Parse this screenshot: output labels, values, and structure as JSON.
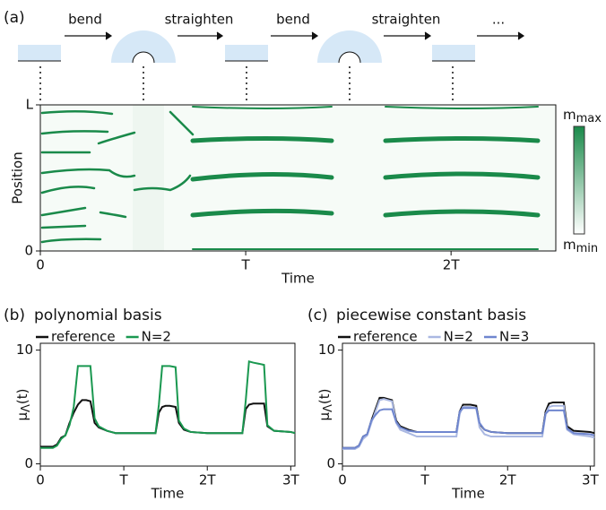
{
  "panel_labels": [
    "(a)",
    "(b)",
    "(c)"
  ],
  "schematic_steps": [
    "bend",
    "straighten",
    "bend",
    "straighten",
    "..."
  ],
  "chart_data": [
    {
      "type": "heatmap",
      "xlabel": "Time",
      "ylabel": "Position",
      "xlim": [
        0,
        2.51
      ],
      "xticks": [
        0,
        {
          "value": 1,
          "label": "T"
        },
        {
          "value": 2,
          "label": "2T"
        }
      ],
      "ylim": [
        0,
        1
      ],
      "yticks": [
        0,
        {
          "value": 1,
          "label": "L"
        }
      ],
      "colorbar": {
        "max": [
          "m",
          "max"
        ],
        "min": [
          "m",
          "min"
        ],
        "color": "#1a8a4a"
      }
    },
    {
      "type": "line",
      "title": "polynomial basis",
      "xlabel": "Time",
      "ylabel": [
        "μ",
        "Λ",
        "(t)"
      ],
      "xlim": [
        0,
        3.05
      ],
      "xticks": [
        0,
        {
          "value": 1,
          "label": "T"
        },
        {
          "value": 2,
          "label": "2T"
        },
        {
          "value": 3,
          "label": "3T"
        }
      ],
      "ylim": [
        -0.2,
        10.6
      ],
      "yticks": [
        0,
        10
      ],
      "x": [
        0,
        0.15,
        0.2,
        0.25,
        0.3,
        0.35,
        0.4,
        0.45,
        0.5,
        0.55,
        0.6,
        0.65,
        0.7,
        0.8,
        0.9,
        1.0,
        1.2,
        1.38,
        1.42,
        1.46,
        1.5,
        1.55,
        1.62,
        1.66,
        1.72,
        1.8,
        2.0,
        2.3,
        2.42,
        2.46,
        2.5,
        2.55,
        2.62,
        2.68,
        2.72,
        2.8,
        3.0,
        3.05
      ],
      "series": [
        {
          "name": "reference",
          "color": "#111111",
          "values": [
            1.5,
            1.5,
            1.7,
            2.3,
            2.5,
            3.6,
            4.5,
            5.2,
            5.6,
            5.6,
            5.5,
            3.6,
            3.2,
            2.9,
            2.7,
            2.7,
            2.7,
            2.7,
            4.5,
            5.0,
            5.1,
            5.1,
            5.0,
            3.6,
            3.0,
            2.8,
            2.7,
            2.7,
            2.7,
            4.8,
            5.2,
            5.3,
            5.3,
            5.3,
            3.3,
            2.9,
            2.8,
            2.7
          ]
        },
        {
          "name": "N=2",
          "color": "#1a9850",
          "values": [
            1.4,
            1.4,
            1.6,
            2.2,
            2.5,
            3.4,
            5.0,
            8.6,
            8.6,
            8.6,
            8.6,
            4.0,
            3.3,
            2.9,
            2.7,
            2.7,
            2.7,
            2.7,
            5.2,
            8.6,
            8.6,
            8.6,
            8.5,
            3.8,
            3.1,
            2.8,
            2.7,
            2.7,
            2.7,
            5.5,
            9.0,
            8.9,
            8.8,
            8.7,
            3.4,
            2.9,
            2.8,
            2.7
          ]
        }
      ]
    },
    {
      "type": "line",
      "title": "piecewise constant basis",
      "xlabel": "Time",
      "ylabel": [
        "μ",
        "Λ",
        "(t)"
      ],
      "xlim": [
        0,
        3.05
      ],
      "xticks": [
        0,
        {
          "value": 1,
          "label": "T"
        },
        {
          "value": 2,
          "label": "2T"
        },
        {
          "value": 3,
          "label": "3T"
        }
      ],
      "ylim": [
        -0.2,
        10.6
      ],
      "yticks": [
        0,
        10
      ],
      "x": [
        0,
        0.15,
        0.2,
        0.25,
        0.3,
        0.35,
        0.4,
        0.45,
        0.5,
        0.55,
        0.6,
        0.65,
        0.7,
        0.8,
        0.9,
        1.0,
        1.2,
        1.38,
        1.42,
        1.46,
        1.5,
        1.55,
        1.62,
        1.66,
        1.72,
        1.8,
        2.0,
        2.3,
        2.42,
        2.46,
        2.5,
        2.55,
        2.62,
        2.68,
        2.72,
        2.8,
        3.0,
        3.05
      ],
      "series": [
        {
          "name": "reference",
          "color": "#111111",
          "values": [
            1.4,
            1.4,
            1.6,
            2.4,
            2.6,
            3.8,
            4.8,
            5.8,
            5.8,
            5.7,
            5.6,
            3.8,
            3.3,
            3.0,
            2.8,
            2.8,
            2.8,
            2.8,
            4.6,
            5.2,
            5.2,
            5.2,
            5.1,
            3.5,
            3.0,
            2.8,
            2.7,
            2.7,
            2.7,
            4.6,
            5.3,
            5.4,
            5.4,
            5.4,
            3.3,
            2.9,
            2.8,
            2.7
          ]
        },
        {
          "name": "N=2",
          "color": "#aab8e2",
          "values": [
            1.3,
            1.3,
            1.5,
            2.2,
            2.5,
            3.6,
            4.6,
            5.6,
            5.7,
            5.6,
            5.5,
            3.6,
            3.0,
            2.7,
            2.4,
            2.4,
            2.4,
            2.4,
            4.4,
            5.0,
            5.0,
            5.0,
            4.9,
            3.2,
            2.6,
            2.4,
            2.4,
            2.4,
            2.4,
            4.4,
            5.0,
            5.1,
            5.1,
            5.1,
            3.0,
            2.6,
            2.4,
            2.3
          ]
        },
        {
          "name": "N=3",
          "color": "#6f86cf",
          "values": [
            1.4,
            1.4,
            1.6,
            2.4,
            2.6,
            3.8,
            4.3,
            4.7,
            4.8,
            4.8,
            4.8,
            3.7,
            3.2,
            2.9,
            2.8,
            2.8,
            2.8,
            2.8,
            4.6,
            4.9,
            4.9,
            4.9,
            4.9,
            3.6,
            3.0,
            2.8,
            2.7,
            2.7,
            2.7,
            4.4,
            4.7,
            4.7,
            4.7,
            4.7,
            3.1,
            2.7,
            2.6,
            2.5
          ]
        }
      ]
    }
  ]
}
